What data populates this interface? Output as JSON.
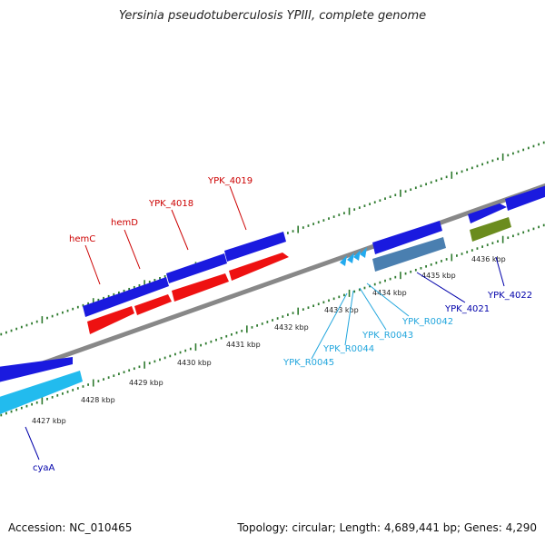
{
  "title": "Yersinia pseudotuberculosis YPIII, complete genome",
  "footer": {
    "accession": "Accession: NC_010465",
    "summary": "Topology: circular; Length: 4,689,441 bp; Genes: 4,290"
  },
  "colors": {
    "forward_cds": "#1a1adf",
    "reverse_cds": "#ee1111",
    "light_cds": "#22bbee",
    "rrna": "#4a7fb0",
    "other": "#6b8c1e",
    "backbone": "#888888",
    "ticks": "#2e7a2e",
    "label_red": "#cc0000",
    "label_blue": "#0000aa",
    "label_light": "#22a6dd"
  },
  "ticks": [
    {
      "label": "4427 kbp"
    },
    {
      "label": "4428 kbp"
    },
    {
      "label": "4429 kbp"
    },
    {
      "label": "4430 kbp"
    },
    {
      "label": "4431 kbp"
    },
    {
      "label": "4432 kbp"
    },
    {
      "label": "4433 kbp"
    },
    {
      "label": "4434 kbp"
    },
    {
      "label": "4435 kbp"
    },
    {
      "label": "4436 kbp"
    }
  ],
  "genes": [
    {
      "label": "hemC",
      "color_key": "label_red"
    },
    {
      "label": "hemD",
      "color_key": "label_red"
    },
    {
      "label": "YPK_4018",
      "color_key": "label_red"
    },
    {
      "label": "YPK_4019",
      "color_key": "label_red"
    },
    {
      "label": "cyaA",
      "color_key": "label_blue"
    },
    {
      "label": "YPK_4021",
      "color_key": "label_blue"
    },
    {
      "label": "YPK_4022",
      "color_key": "label_blue"
    },
    {
      "label": "YPK_R0042",
      "color_key": "label_light"
    },
    {
      "label": "YPK_R0043",
      "color_key": "label_light"
    },
    {
      "label": "YPK_R0044",
      "color_key": "label_light"
    },
    {
      "label": "YPK_R0045",
      "color_key": "label_light"
    }
  ]
}
